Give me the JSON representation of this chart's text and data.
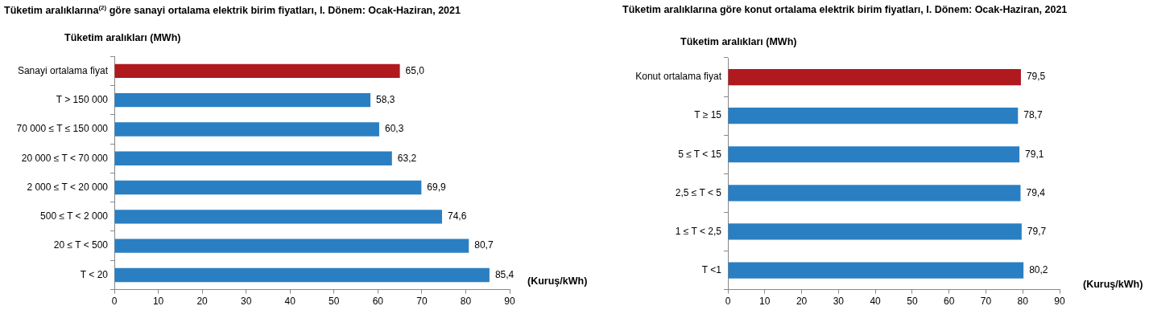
{
  "chart_data": [
    {
      "type": "bar",
      "orientation": "horizontal",
      "title": "Tüketim aralıklarına$^{(2)}$ göre sanayi ortalama elektrik birim fiyatları, I. Dönem: Ocak-Haziran, 2021",
      "ylabel": "Tüketim aralıkları (MWh)",
      "xlabel": "(Kuruş/kWh)",
      "categories": [
        "Sanayi ortalama fiyat",
        "T > 150 000",
        "70 000 ≤ T ≤ 150 000",
        "20 000 ≤ T < 70 000",
        "2 000 ≤ T < 20 000",
        "500 ≤ T < 2 000",
        "20 ≤ T < 500",
        "T < 20"
      ],
      "values": [
        65.0,
        58.3,
        60.3,
        63.2,
        69.9,
        74.6,
        80.7,
        85.4
      ],
      "value_labels": [
        "65,0",
        "58,3",
        "60,3",
        "63,2",
        "69,9",
        "74,6",
        "80,7",
        "85,4"
      ],
      "colors": [
        "#b0191e",
        "#2a7fc3",
        "#2a7fc3",
        "#2a7fc3",
        "#2a7fc3",
        "#2a7fc3",
        "#2a7fc3",
        "#2a7fc3"
      ],
      "xlim": [
        0,
        90
      ],
      "xticks": [
        0,
        10,
        20,
        30,
        40,
        50,
        60,
        70,
        80,
        90
      ],
      "grid": false,
      "legend": false
    },
    {
      "type": "bar",
      "orientation": "horizontal",
      "title": "Tüketim aralıklarına göre konut ortalama elektrik birim fiyatları, I. Dönem: Ocak-Haziran, 2021",
      "ylabel": "Tüketim aralıkları (MWh)",
      "xlabel": "(Kuruş/kWh)",
      "categories": [
        "Konut ortalama fiyat",
        "T ≥ 15",
        "5 ≤ T < 15",
        "2,5 ≤ T < 5",
        "1 ≤ T < 2,5",
        "T <1"
      ],
      "values": [
        79.5,
        78.7,
        79.1,
        79.4,
        79.7,
        80.2
      ],
      "value_labels": [
        "79,5",
        "78,7",
        "79,1",
        "79,4",
        "79,7",
        "80,2"
      ],
      "colors": [
        "#b0191e",
        "#2a7fc3",
        "#2a7fc3",
        "#2a7fc3",
        "#2a7fc3",
        "#2a7fc3"
      ],
      "xlim": [
        0,
        90
      ],
      "xticks": [
        0,
        10,
        20,
        30,
        40,
        50,
        60,
        70,
        80,
        90
      ],
      "grid": false,
      "legend": false
    }
  ]
}
